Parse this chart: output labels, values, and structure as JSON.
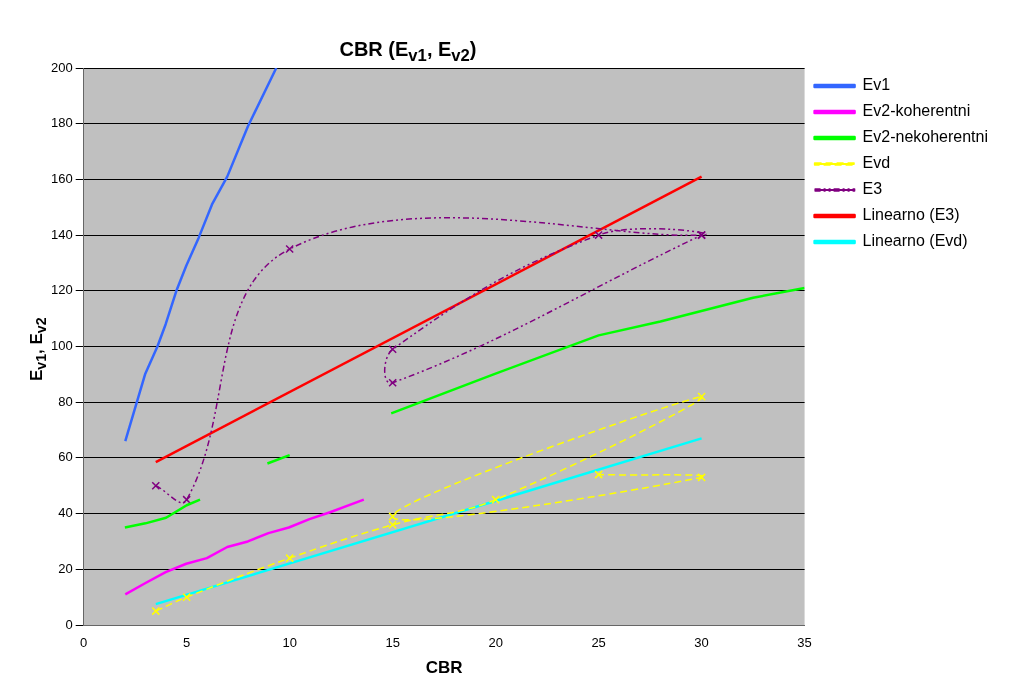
{
  "chart_data": {
    "type": "line",
    "title": "CBR (E$_{v1}$, E$_{v2}$)",
    "xlabel": "CBR",
    "ylabel": "E$_{v1}$,  E$_{v2}$",
    "xlim": [
      0,
      35
    ],
    "xticks": [
      0,
      5,
      10,
      15,
      20,
      25,
      30,
      35
    ],
    "ylim": [
      0,
      200
    ],
    "yticks": [
      0,
      20,
      40,
      60,
      80,
      100,
      120,
      140,
      160,
      180,
      200
    ],
    "grid": "y",
    "legend": "top right",
    "marker": "none",
    "line_style": "solid",
    "series": [
      {
        "name": "Ev1",
        "color": "#3366ff",
        "x": [
          2.02,
          2.98,
          3.58,
          3.98,
          4.5,
          4.98,
          5.58,
          6.23,
          6.97,
          7.97,
          9.35
        ],
        "values": [
          66,
          90,
          100,
          108,
          120,
          129,
          139,
          151,
          161,
          179,
          200
        ]
      },
      {
        "name": "Ev2-koherentni",
        "color": "#ff00ff",
        "x": [
          2.02,
          2.98,
          3.98,
          4.98,
          5.98,
          6.97,
          7.97,
          8.97,
          9.96,
          10.96,
          11.96,
          13.6
        ],
        "values": [
          11,
          15,
          19,
          22,
          24,
          28,
          30,
          33,
          35,
          38,
          40.5,
          45
        ]
      },
      {
        "name": "Ev2-nekoherentni",
        "color": "#00ff00",
        "x": [
          2,
          3,
          4,
          5,
          5.65,
          7,
          8.92,
          10,
          12,
          14.93,
          19.9,
          25,
          28,
          32.5,
          35
        ],
        "values": [
          35,
          36.5,
          38.5,
          43,
          45,
          null,
          58,
          61,
          null,
          76,
          90,
          104,
          109,
          117.5,
          121
        ]
      },
      {
        "name": "Evd",
        "type": "line",
        "color": "#ffff00",
        "marker": "cross",
        "line_style": "dashed",
        "x": [
          3.5,
          5,
          10,
          15,
          20,
          30,
          15,
          30,
          25
        ],
        "values": [
          5,
          10,
          24,
          36,
          45,
          82,
          39,
          53,
          54
        ]
      },
      {
        "name": "E3",
        "type": "line",
        "color": "#800080",
        "marker": "cross",
        "line_style": "dotted",
        "x": [
          3.5,
          5,
          10,
          30,
          25,
          15,
          15,
          30
        ],
        "values": [
          50,
          45,
          135,
          140,
          140,
          99,
          87,
          140
        ]
      },
      {
        "name": "Linearno (E3)",
        "type": "line",
        "color": "#ff0000",
        "x": [
          3.5,
          30
        ],
        "values": [
          58.5,
          161
        ]
      },
      {
        "name": "Linearno (Evd)",
        "type": "line",
        "color": "#00ffff",
        "x": [
          3.5,
          30
        ],
        "values": [
          7.5,
          67
        ]
      }
    ]
  }
}
